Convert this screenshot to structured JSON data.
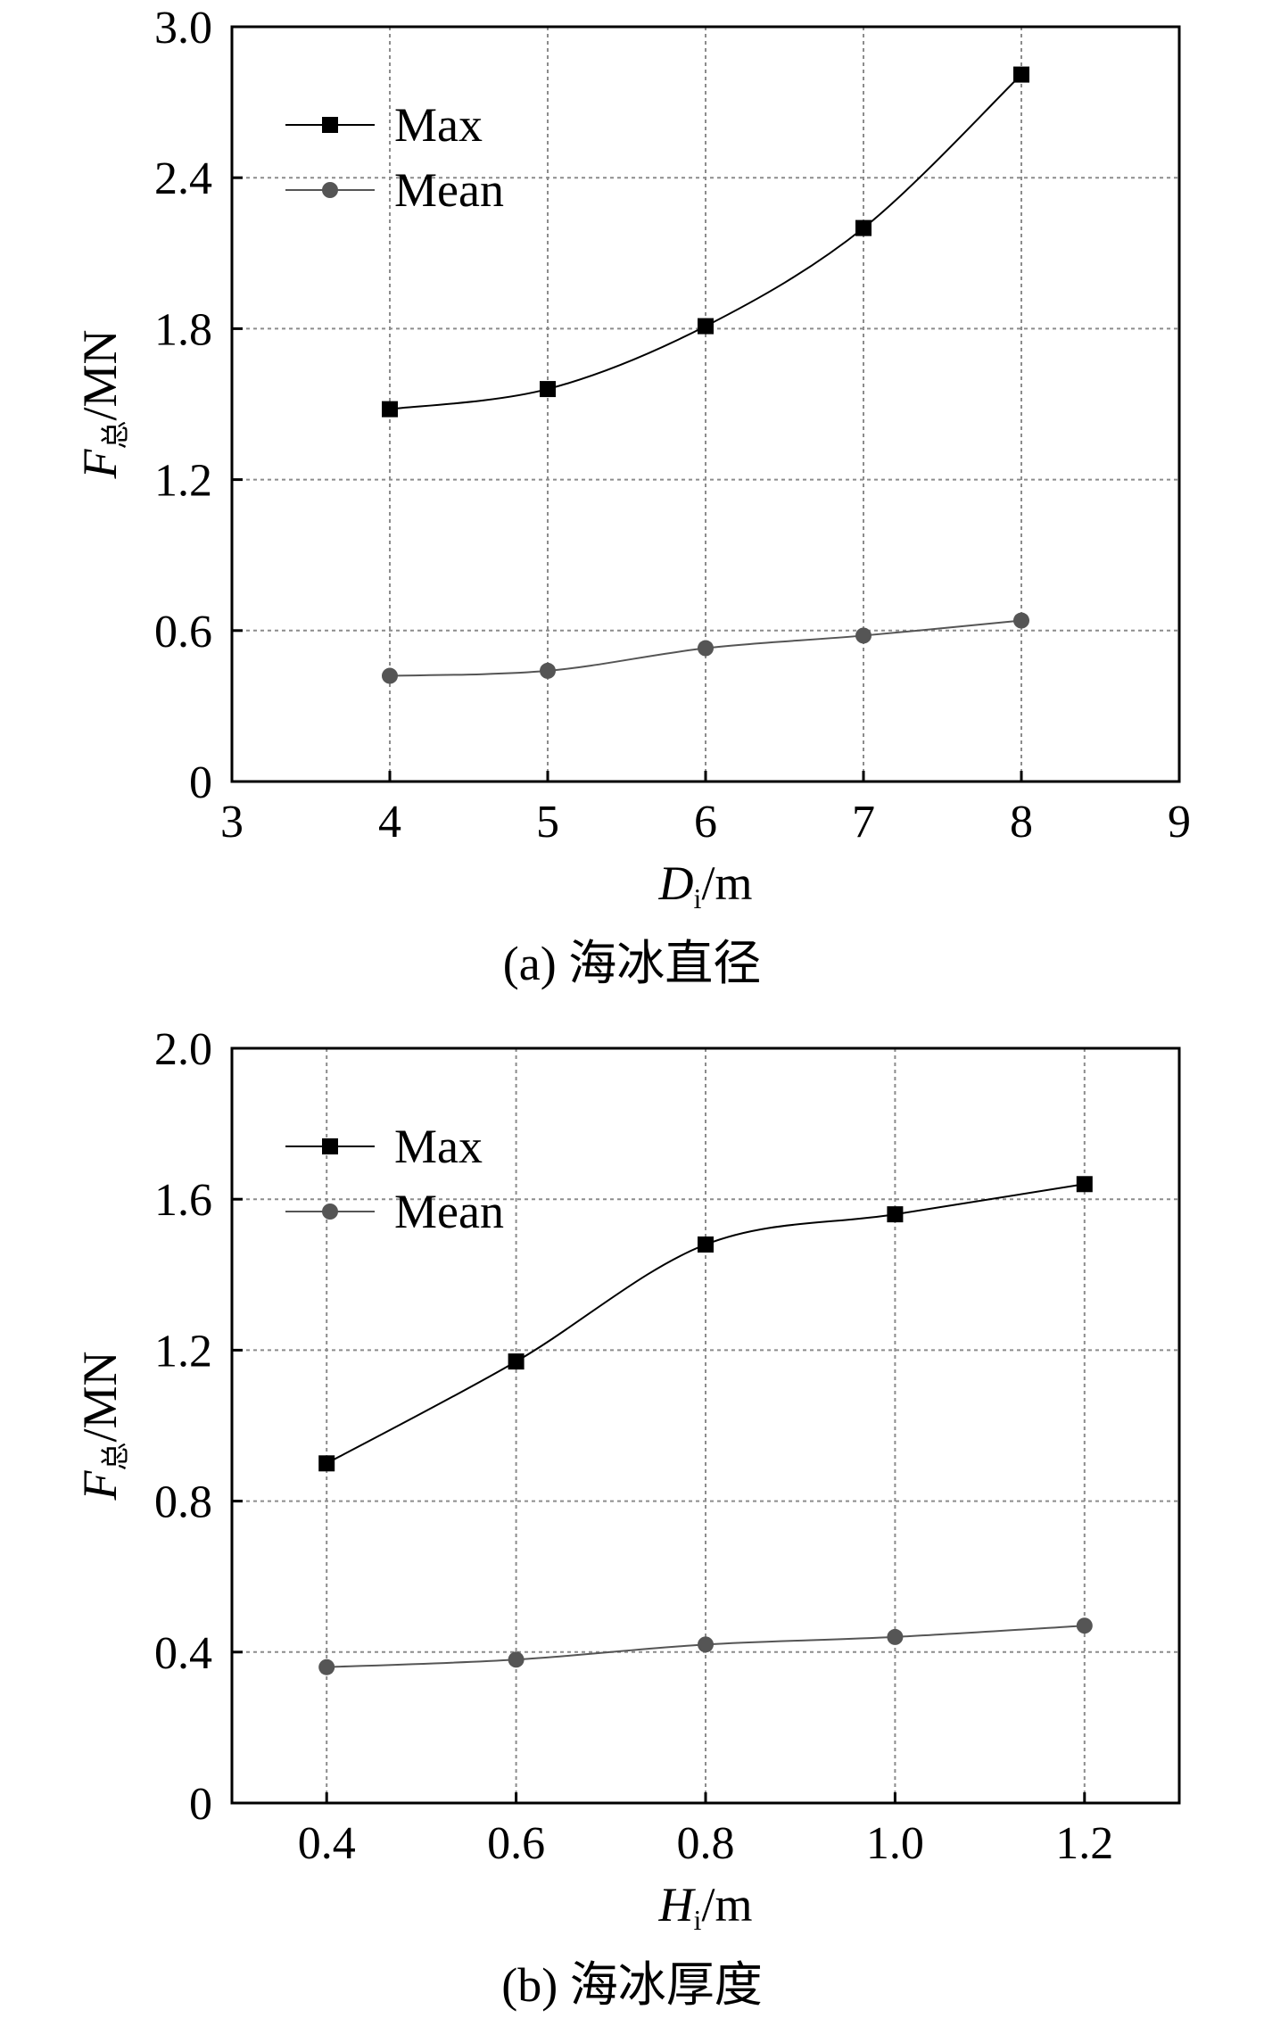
{
  "chart_data": [
    {
      "type": "line",
      "caption": "(a) 海冰直径",
      "xlabel": {
        "symbol": "D",
        "sub": "i",
        "unit": "/m"
      },
      "ylabel": {
        "symbol": "F",
        "sub": "总",
        "unit": "/MN"
      },
      "xlim": [
        3,
        9
      ],
      "ylim": [
        0,
        3.0
      ],
      "xticks": [
        3,
        4,
        5,
        6,
        7,
        8,
        9
      ],
      "xtick_labels": [
        "3",
        "4",
        "5",
        "6",
        "7",
        "8",
        "9"
      ],
      "yticks": [
        0,
        0.6,
        1.2,
        1.8,
        2.4,
        3.0
      ],
      "ytick_labels": [
        "0",
        "0.6",
        "1.2",
        "1.8",
        "2.4",
        "3.0"
      ],
      "grid": true,
      "legend_position": "top-left",
      "x": [
        4,
        5,
        6,
        7,
        8
      ],
      "series": [
        {
          "name": "Max",
          "marker": "square",
          "color": "#000000",
          "values": [
            1.48,
            1.56,
            1.81,
            2.2,
            2.81
          ]
        },
        {
          "name": "Mean",
          "marker": "circle",
          "color": "#555555",
          "values": [
            0.42,
            0.44,
            0.53,
            0.58,
            0.64
          ]
        }
      ]
    },
    {
      "type": "line",
      "caption": "(b) 海冰厚度",
      "xlabel": {
        "symbol": "H",
        "sub": "i",
        "unit": "/m"
      },
      "ylabel": {
        "symbol": "F",
        "sub": "总",
        "unit": "/MN"
      },
      "xlim": [
        0.3,
        1.3
      ],
      "ylim": [
        0,
        2.0
      ],
      "xticks": [
        0.4,
        0.6,
        0.8,
        1.0,
        1.2
      ],
      "xtick_labels": [
        "0.4",
        "0.6",
        "0.8",
        "1.0",
        "1.2"
      ],
      "yticks": [
        0,
        0.4,
        0.8,
        1.2,
        1.6,
        2.0
      ],
      "ytick_labels": [
        "0",
        "0.4",
        "0.8",
        "1.2",
        "1.6",
        "2.0"
      ],
      "grid": true,
      "legend_position": "top-left",
      "x": [
        0.4,
        0.6,
        0.8,
        1.0,
        1.2
      ],
      "series": [
        {
          "name": "Max",
          "marker": "square",
          "color": "#000000",
          "values": [
            0.9,
            1.17,
            1.48,
            1.56,
            1.64
          ]
        },
        {
          "name": "Mean",
          "marker": "circle",
          "color": "#555555",
          "values": [
            0.36,
            0.38,
            0.42,
            0.44,
            0.47
          ]
        }
      ]
    }
  ]
}
